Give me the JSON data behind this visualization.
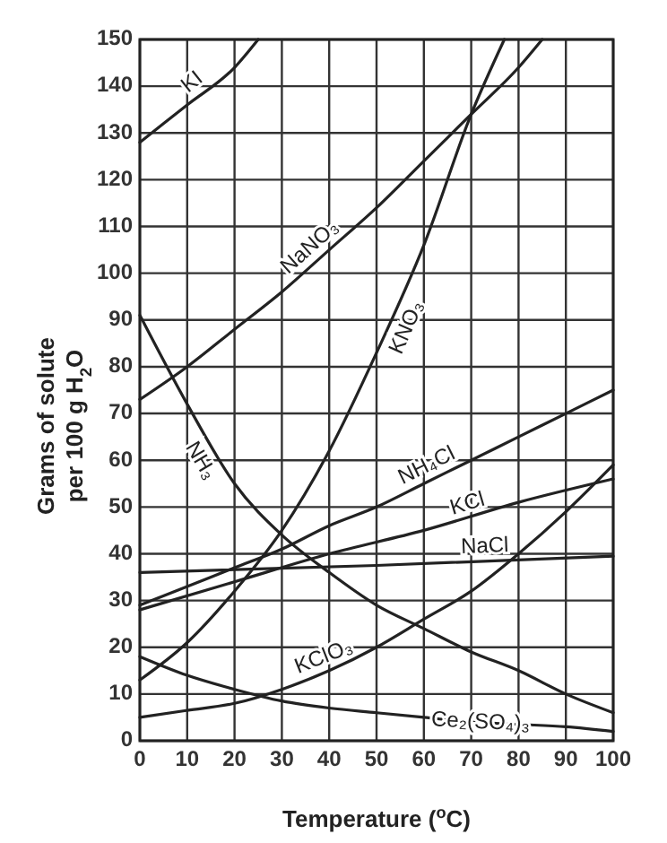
{
  "chart_data": {
    "type": "line",
    "xlabel": "Temperature ($^{o}$C)",
    "ylabel": "Grams of solute\nper 100 g H$_{2}$O",
    "x": [
      0,
      10,
      20,
      30,
      40,
      50,
      60,
      70,
      80,
      90,
      100
    ],
    "xlim": [
      0,
      100
    ],
    "ylim": [
      0,
      150
    ],
    "xticks": [
      0,
      10,
      20,
      30,
      40,
      50,
      60,
      70,
      80,
      90,
      100
    ],
    "yticks": [
      0,
      10,
      20,
      30,
      40,
      50,
      60,
      70,
      80,
      90,
      100,
      110,
      120,
      130,
      140,
      150
    ],
    "grid": true,
    "marker": "none",
    "line_style": "solid",
    "series": [
      {
        "name": "KI",
        "color": "#222222",
        "x": [
          0,
          10,
          20,
          25
        ],
        "values": [
          128,
          136,
          144,
          150
        ]
      },
      {
        "name": "NaNO₃",
        "color": "#222222",
        "x": [
          0,
          10,
          20,
          30,
          40,
          50,
          60,
          70,
          80,
          85
        ],
        "values": [
          73,
          80,
          88,
          96,
          105,
          114,
          124,
          134,
          144,
          150
        ]
      },
      {
        "name": "KNO₃",
        "color": "#222222",
        "x": [
          0,
          10,
          20,
          30,
          40,
          50,
          60,
          70,
          77
        ],
        "values": [
          13,
          21,
          32,
          45,
          62,
          83,
          106,
          134,
          150
        ]
      },
      {
        "name": "NH₃",
        "color": "#222222",
        "values": [
          91,
          72,
          55,
          44,
          36,
          29,
          24,
          19,
          15,
          10,
          6
        ]
      },
      {
        "name": "NH₄Cl",
        "color": "#222222",
        "values": [
          29,
          33,
          37,
          41,
          46,
          50,
          55,
          60,
          65,
          70,
          75
        ]
      },
      {
        "name": "KCl",
        "color": "#222222",
        "x": [
          0,
          20,
          40,
          60,
          80,
          100
        ],
        "values": [
          28,
          34,
          40,
          45,
          51,
          56
        ]
      },
      {
        "name": "NaCl",
        "color": "#222222",
        "x": [
          0,
          50,
          100
        ],
        "values": [
          36,
          37.5,
          39.5
        ]
      },
      {
        "name": "KClO₃",
        "color": "#222222",
        "values": [
          5,
          6.5,
          8,
          11,
          15,
          20,
          26,
          32,
          40,
          49,
          59
        ]
      },
      {
        "name": "Ce₂(SO₄)₃",
        "color": "#222222",
        "values": [
          18,
          14,
          11,
          8.5,
          7,
          6,
          5,
          4,
          3.5,
          3,
          2
        ]
      }
    ]
  }
}
